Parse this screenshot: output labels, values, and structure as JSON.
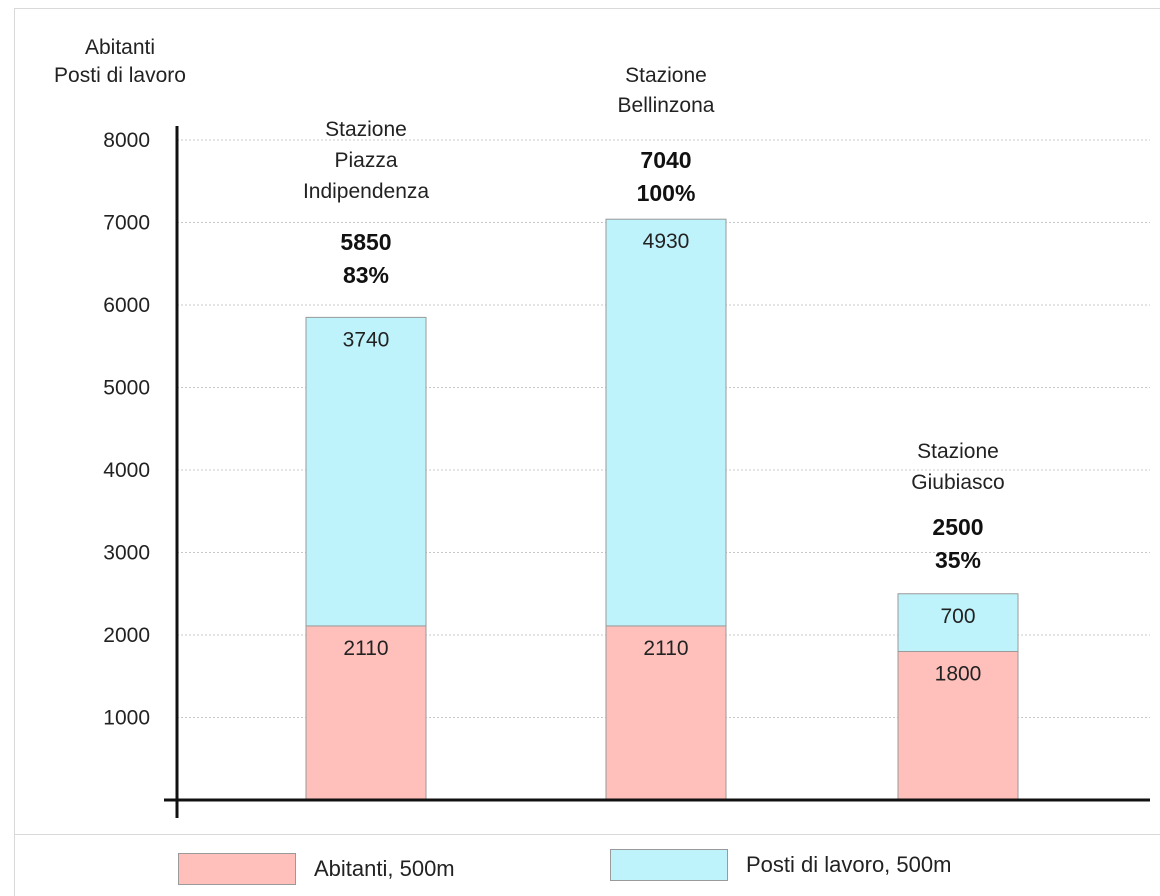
{
  "chart_data": {
    "type": "bar",
    "stacked": true,
    "ylabel": [
      "Abitanti",
      "Posti di lavoro"
    ],
    "ylim": [
      0,
      8000
    ],
    "yticks": [
      1000,
      2000,
      3000,
      4000,
      5000,
      6000,
      7000,
      8000
    ],
    "grid": true,
    "legend_position": "bottom",
    "categories": [
      [
        "Stazione",
        "Piazza",
        "Indipendenza"
      ],
      [
        "Stazione",
        "Bellinzona"
      ],
      [
        "Stazione",
        "Giubiasco"
      ]
    ],
    "totals": [
      "5850",
      "7040",
      "2500"
    ],
    "percents": [
      "83%",
      "100%",
      "35%"
    ],
    "series": [
      {
        "name": "Abitanti, 500m",
        "color": "#ffc0bb",
        "values": [
          2110,
          2110,
          1800
        ]
      },
      {
        "name": "Posti di lavoro, 500m",
        "color": "#bff3fb",
        "values": [
          3740,
          4930,
          700
        ]
      }
    ]
  }
}
